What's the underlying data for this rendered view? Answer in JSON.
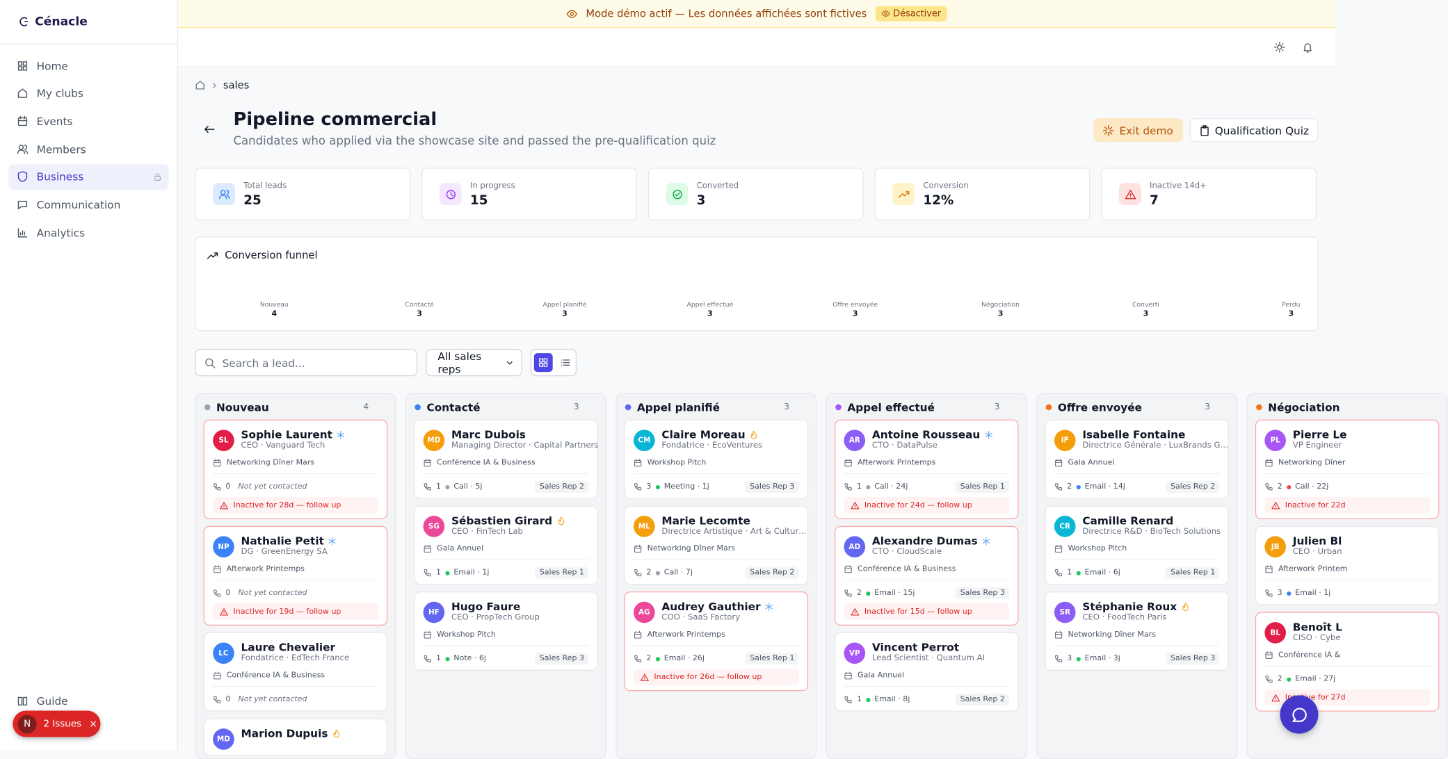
{
  "banner": {
    "text": "Mode démo actif — Les données affichées sont fictives",
    "button": "Désactiver"
  },
  "sidebar": {
    "brand": "Cénacle",
    "nav": [
      "Home",
      "My clubs",
      "Events",
      "Members",
      "Business",
      "Communication",
      "Analytics"
    ],
    "active": 4,
    "guide": "Guide",
    "issues": {
      "avatar": "N",
      "text": "2 Issues"
    }
  },
  "breadcrumb": {
    "page": "sales"
  },
  "header": {
    "title": "Pipeline commercial",
    "subtitle": "Candidates who applied via the showcase site and passed the pre-qualification quiz",
    "buttons": [
      "Exit demo",
      "Qualification Quiz"
    ]
  },
  "stats": [
    {
      "label": "Total leads",
      "value": "25",
      "color": "#dbeafe",
      "icon": "#3b82f6"
    },
    {
      "label": "In progress",
      "value": "15",
      "color": "#f3e8ff",
      "icon": "#9333ea"
    },
    {
      "label": "Converted",
      "value": "3",
      "color": "#dcfce7",
      "icon": "#16a34a"
    },
    {
      "label": "Conversion",
      "value": "12%",
      "color": "#fef3c7",
      "icon": "#d97706"
    },
    {
      "label": "Inactive 14d+",
      "value": "7",
      "color": "#fee2e2",
      "icon": "#dc2626"
    }
  ],
  "funnel": {
    "title": "Conversion funnel",
    "stages": [
      {
        "label": "Nouveau",
        "count": "4"
      },
      {
        "label": "Contacté",
        "count": "3"
      },
      {
        "label": "Appel planifié",
        "count": "3"
      },
      {
        "label": "Appel effectué",
        "count": "3"
      },
      {
        "label": "Offre envoyée",
        "count": "3"
      },
      {
        "label": "Négociation",
        "count": "3"
      },
      {
        "label": "Converti",
        "count": "3"
      },
      {
        "label": "Perdu",
        "count": "3"
      }
    ]
  },
  "toolbar": {
    "search": "Search a lead...",
    "select": "All sales reps"
  },
  "columns": [
    {
      "name": "Nouveau",
      "count": "4",
      "color": "#9ca3af",
      "cards": [
        {
          "initials": "SL",
          "name": "Sophie Laurent",
          "temp": "cold",
          "avatar": "#e11d48",
          "role": "CEO · Vanguard Tech",
          "event": "Networking Dîner Mars",
          "calls": "0",
          "activity": "Not yet contacted",
          "alert": "Inactive for 28d — follow up"
        },
        {
          "initials": "NP",
          "name": "Nathalie Petit",
          "temp": "cold",
          "avatar": "#3b82f6",
          "role": "DG · GreenEnergy SA",
          "event": "Afterwork Printemps",
          "calls": "0",
          "activity": "Not yet contacted",
          "alert": "Inactive for 19d — follow up"
        },
        {
          "initials": "LC",
          "name": "Laure Chevalier",
          "avatar": "#3b82f6",
          "role": "Fondatrice · EdTech France",
          "event": "Conférence IA & Business",
          "calls": "0",
          "activity": "Not yet contacted"
        },
        {
          "initials": "MD",
          "name": "Marion Dupuis",
          "temp": "hot",
          "avatar": "#6366f1"
        }
      ]
    },
    {
      "name": "Contacté",
      "count": "3",
      "color": "#3b82f6",
      "cards": [
        {
          "initials": "MD",
          "name": "Marc Dubois",
          "avatar": "#f59e0b",
          "role": "Managing Director · Capital Partners",
          "event": "Conférence IA & Business",
          "calls": "1",
          "activity": "Call · 5j",
          "dot": "#9ca3af",
          "rep": "Sales Rep 2"
        },
        {
          "initials": "SG",
          "name": "Sébastien Girard",
          "temp": "hot",
          "avatar": "#ec4899",
          "role": "CEO · FinTech Lab",
          "event": "Gala Annuel",
          "calls": "1",
          "activity": "Email · 1j",
          "dot": "#22c55e",
          "rep": "Sales Rep 1"
        },
        {
          "initials": "HF",
          "name": "Hugo Faure",
          "avatar": "#6366f1",
          "role": "CEO · PropTech Group",
          "event": "Workshop Pitch",
          "calls": "1",
          "activity": "Note · 6j",
          "dot": "#22c55e",
          "rep": "Sales Rep 3"
        }
      ]
    },
    {
      "name": "Appel planifié",
      "count": "3",
      "color": "#6366f1",
      "cards": [
        {
          "initials": "CM",
          "name": "Claire Moreau",
          "temp": "hot",
          "avatar": "#06b6d4",
          "role": "Fondatrice · EcoVentures",
          "event": "Workshop Pitch",
          "calls": "3",
          "activity": "Meeting · 1j",
          "dot": "#22c55e",
          "rep": "Sales Rep 3"
        },
        {
          "initials": "ML",
          "name": "Marie Lecomte",
          "avatar": "#f59e0b",
          "role": "Directrice Artistique · Art & Cultur…",
          "event": "Networking Dîner Mars",
          "calls": "2",
          "activity": "Call · 7j",
          "dot": "#9ca3af",
          "rep": "Sales Rep 2"
        },
        {
          "initials": "AG",
          "name": "Audrey Gauthier",
          "temp": "cold",
          "avatar": "#ec4899",
          "role": "COO · SaaS Factory",
          "event": "Afterwork Printemps",
          "calls": "2",
          "activity": "Email · 26j",
          "dot": "#22c55e",
          "rep": "Sales Rep 1",
          "alert": "Inactive for 26d — follow up"
        }
      ]
    },
    {
      "name": "Appel effectué",
      "count": "3",
      "color": "#a855f7",
      "cards": [
        {
          "initials": "AR",
          "name": "Antoine Rousseau",
          "temp": "cold",
          "avatar": "#8b5cf6",
          "role": "CTO · DataPulse",
          "event": "Afterwork Printemps",
          "calls": "1",
          "activity": "Call · 24j",
          "dot": "#9ca3af",
          "rep": "Sales Rep 1",
          "alert": "Inactive for 24d — follow up"
        },
        {
          "initials": "AD",
          "name": "Alexandre Dumas",
          "temp": "cold",
          "avatar": "#6366f1",
          "role": "CTO · CloudScale",
          "event": "Conférence IA & Business",
          "calls": "2",
          "activity": "Email · 15j",
          "dot": "#22c55e",
          "rep": "Sales Rep 3",
          "alert": "Inactive for 15d — follow up"
        },
        {
          "initials": "VP",
          "name": "Vincent Perrot",
          "avatar": "#a855f7",
          "role": "Lead Scientist · Quantum AI",
          "event": "Gala Annuel",
          "calls": "1",
          "activity": "Email · 8j",
          "dot": "#22c55e",
          "rep": "Sales Rep 2"
        }
      ]
    },
    {
      "name": "Offre envoyée",
      "count": "3",
      "color": "#f97316",
      "cards": [
        {
          "initials": "IF",
          "name": "Isabelle Fontaine",
          "avatar": "#f59e0b",
          "role": "Directrice Générale · LuxBrands G…",
          "event": "Gala Annuel",
          "calls": "2",
          "activity": "Email · 14j",
          "dot": "#3b82f6",
          "rep": "Sales Rep 2"
        },
        {
          "initials": "CR",
          "name": "Camille Renard",
          "avatar": "#06b6d4",
          "role": "Directrice R&D · BioTech Solutions",
          "event": "Workshop Pitch",
          "calls": "1",
          "activity": "Email · 6j",
          "dot": "#22c55e",
          "rep": "Sales Rep 1"
        },
        {
          "initials": "SR",
          "name": "Stéphanie Roux",
          "temp": "hot",
          "avatar": "#8b5cf6",
          "role": "CEO · FoodTech Paris",
          "event": "Networking Dîner Mars",
          "calls": "3",
          "activity": "Email · 3j",
          "dot": "#22c55e",
          "rep": "Sales Rep 3"
        }
      ]
    },
    {
      "name": "Négociation",
      "color": "#f97316",
      "cards": [
        {
          "initials": "PL",
          "name": "Pierre Le",
          "avatar": "#a855f7",
          "role": "VP Engineer",
          "event": "Networking Dîner",
          "calls": "2",
          "activity": "Call · 22j",
          "dot": "#ef4444",
          "alert": "Inactive for 22d"
        },
        {
          "initials": "JB",
          "name": "Julien Bl",
          "avatar": "#f59e0b",
          "role": "CEO · Urban",
          "event": "Afterwork Printem",
          "calls": "3",
          "activity": "Email · 1j",
          "dot": "#3b82f6"
        },
        {
          "initials": "BL",
          "name": "Benoît L",
          "avatar": "#e11d48",
          "role": "CISO · Cybe",
          "event": "Conférence IA &",
          "calls": "2",
          "activity": "Email · 27j",
          "dot": "#22c55e",
          "alert": "Inactive for 27d"
        }
      ]
    }
  ]
}
